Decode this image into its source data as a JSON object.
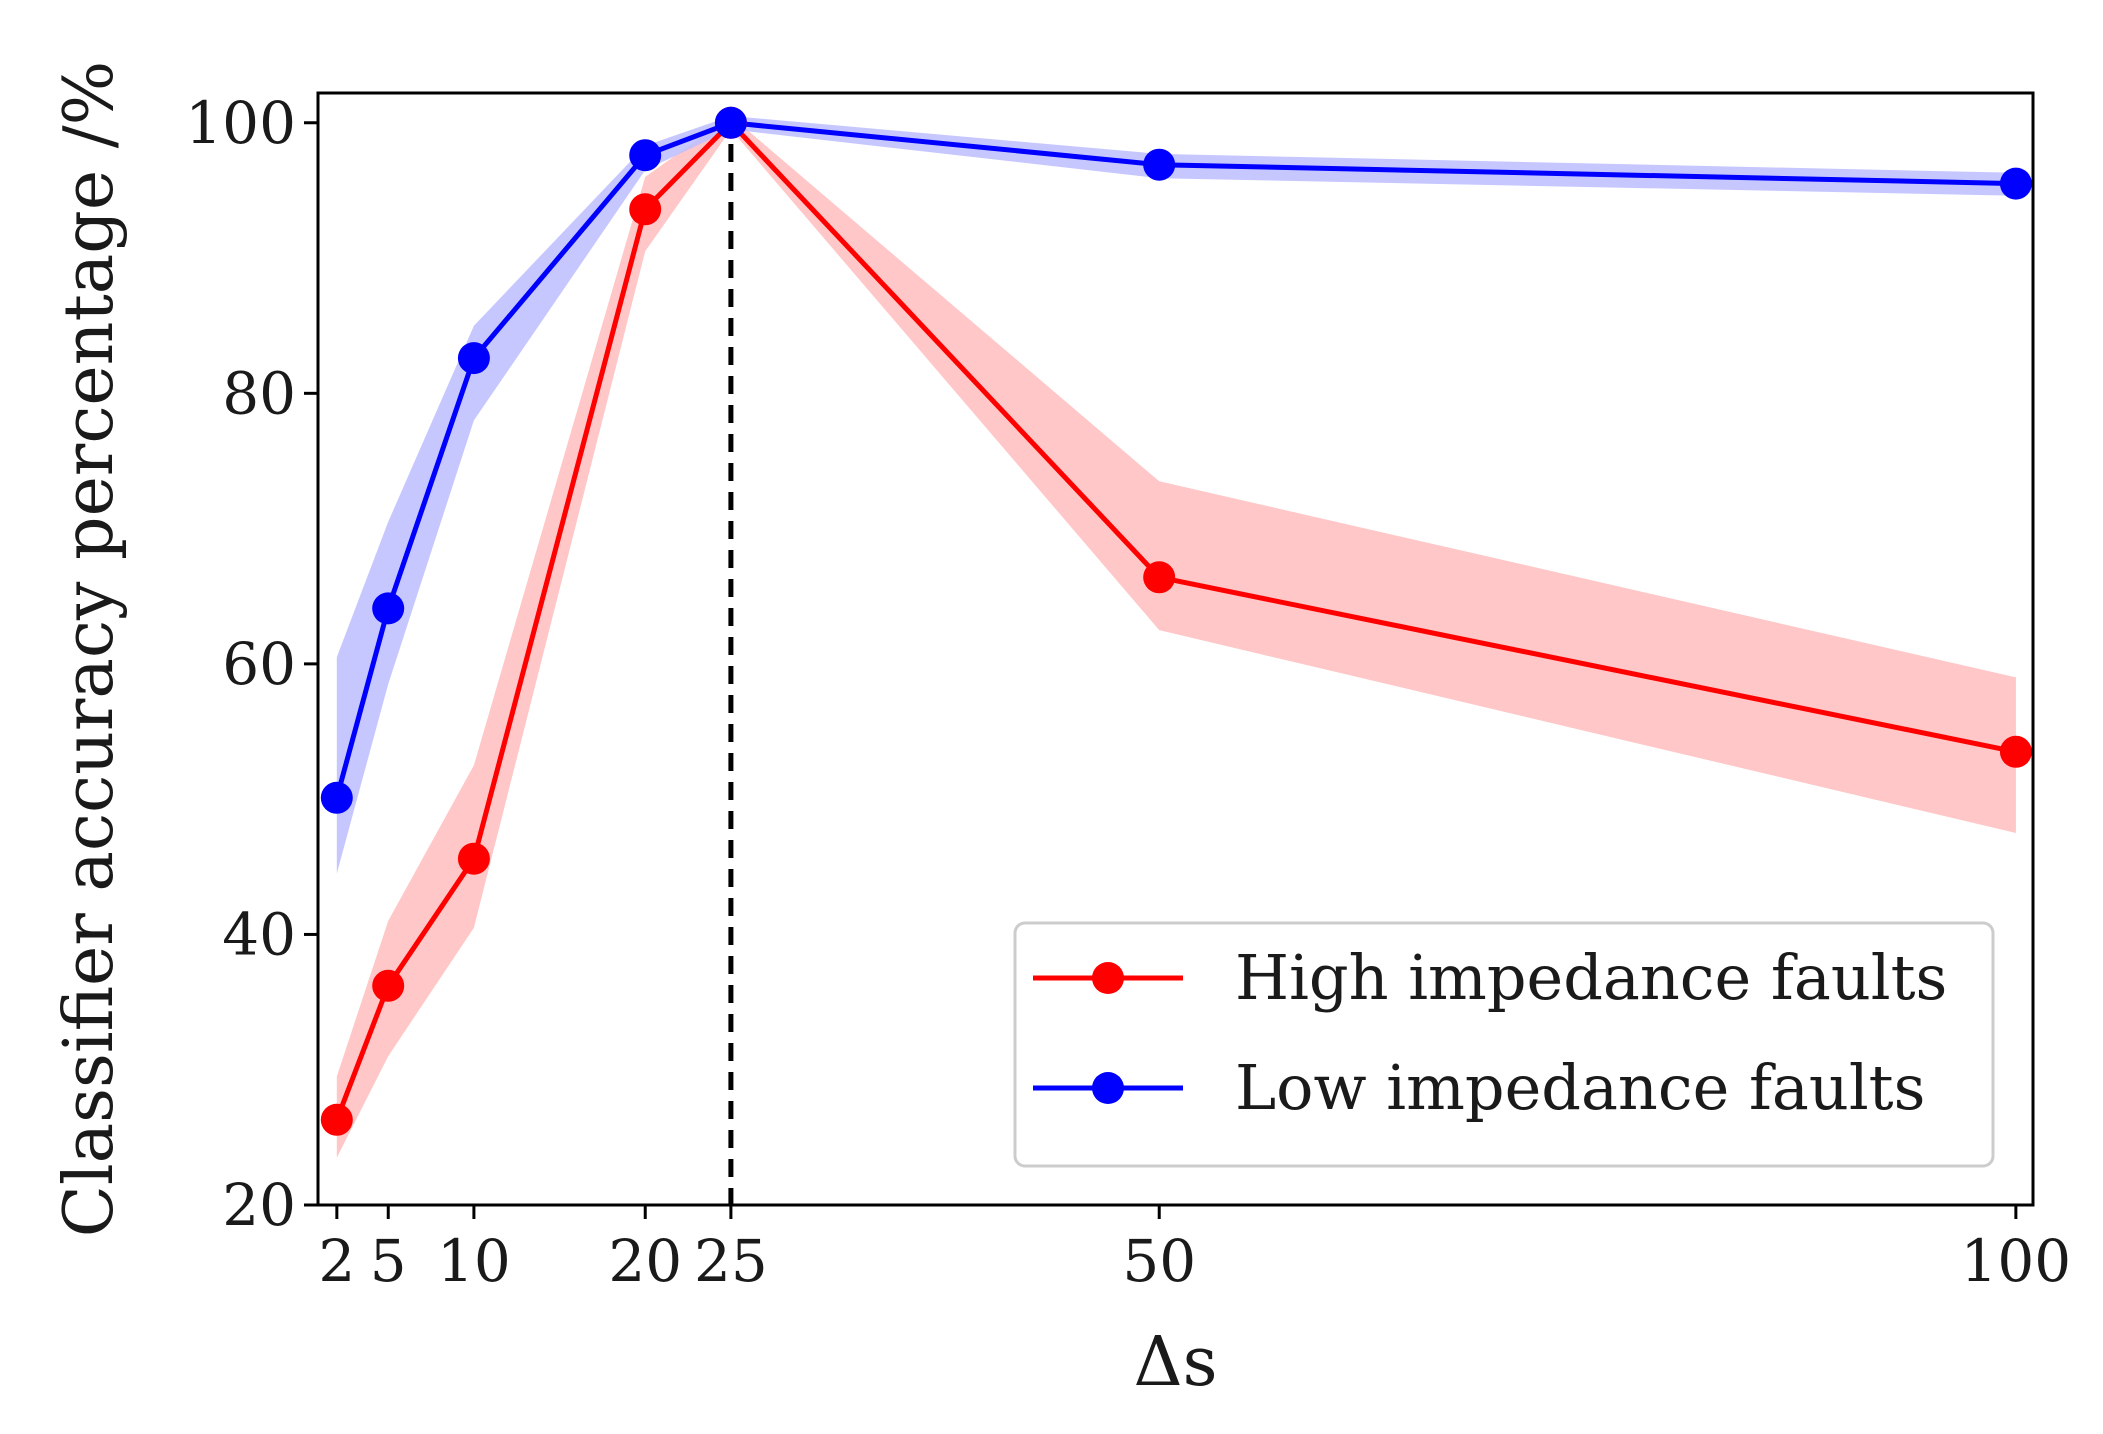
{
  "chart_data": {
    "type": "line",
    "title": "",
    "xlabel": "Δs",
    "ylabel": "Classifier accuracy percentage /%",
    "x": [
      2,
      5,
      10,
      20,
      25,
      50,
      100
    ],
    "x_ticks": [
      2,
      5,
      10,
      20,
      25,
      50,
      100
    ],
    "y_ticks": [
      20,
      40,
      60,
      80,
      100
    ],
    "xlim": [
      0.9,
      101
    ],
    "ylim": [
      20,
      102.2
    ],
    "grid": false,
    "legend_position": "bottom-right",
    "reference_line": {
      "x": 25,
      "style": "dashed",
      "color": "#000000"
    },
    "series": [
      {
        "name": "High impedance faults",
        "color": "#ff0000",
        "band_color": "#ffbdbd",
        "values": [
          26.3,
          36.2,
          45.6,
          93.6,
          100,
          66.4,
          53.5
        ],
        "lower": [
          23.5,
          31.0,
          40.5,
          90.5,
          99.5,
          62.5,
          47.5
        ],
        "upper": [
          29.5,
          41.0,
          52.5,
          96.0,
          100.5,
          73.5,
          59.0
        ]
      },
      {
        "name": "Low impedance faults",
        "color": "#0000ff",
        "band_color": "#bdbdff",
        "values": [
          50.1,
          64.1,
          82.6,
          97.6,
          100,
          96.9,
          95.5
        ],
        "lower": [
          44.5,
          58.5,
          78.0,
          96.5,
          99.5,
          95.9,
          94.6
        ],
        "upper": [
          60.5,
          70.5,
          85.0,
          98.3,
          100.5,
          97.7,
          96.3
        ]
      }
    ]
  }
}
